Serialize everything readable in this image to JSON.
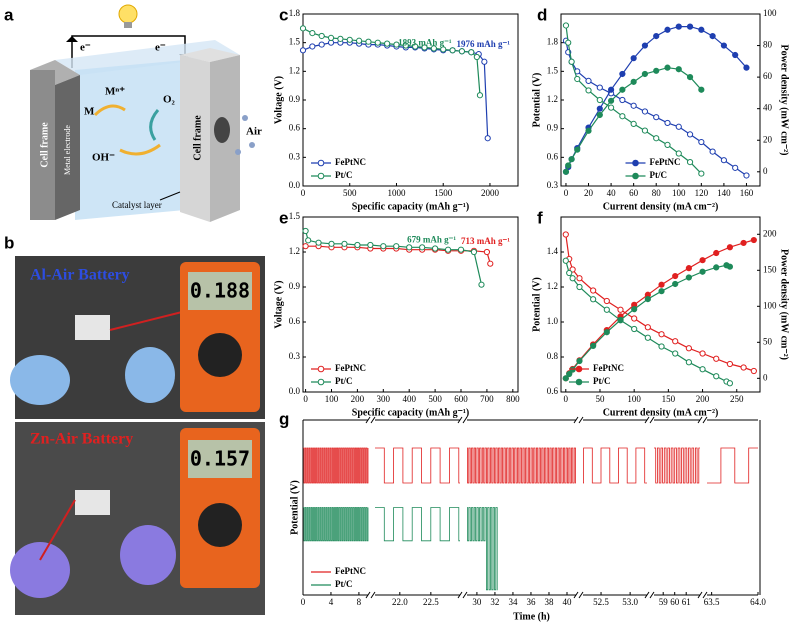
{
  "diagram": {
    "label": "a",
    "e_left": "e⁻",
    "e_right": "e⁻",
    "ion": "Mⁿ⁺",
    "metal": "M",
    "oxygen": "O₂",
    "hydroxide": "OH⁻",
    "air": "Air",
    "frame_left": "Cell frame",
    "electrode": "Metal electrode",
    "frame_right": "Cell frame",
    "catalyst": "Catalyst layer"
  },
  "photos": {
    "label": "b",
    "top_title": "Al-Air Battery",
    "top_reading": "0.188",
    "bottom_title": "Zn-Air Battery",
    "bottom_reading": "0.157"
  },
  "chart_data": [
    {
      "type": "line",
      "label": "c",
      "xlabel": "Specific capacity (mAh g⁻¹)",
      "ylabel": "Voltage (V)",
      "xlim": [
        0,
        2300
      ],
      "xticks": [
        0,
        500,
        1000,
        1500,
        2000
      ],
      "ylim": [
        0,
        1.8
      ],
      "yticks": [
        {
          "value": 0,
          "label": "0.0"
        },
        0.3,
        0.6,
        0.9,
        1.2,
        1.5,
        1.8
      ],
      "legend": "lower left",
      "series": [
        {
          "name": "FePtNC",
          "color": "#1f3fb0",
          "annotation": "1976 mAh g⁻¹",
          "x": [
            0,
            100,
            200,
            300,
            400,
            500,
            600,
            700,
            800,
            900,
            1000,
            1100,
            1200,
            1300,
            1400,
            1500,
            1600,
            1700,
            1800,
            1880,
            1940,
            1976
          ],
          "values": [
            1.42,
            1.46,
            1.48,
            1.5,
            1.5,
            1.5,
            1.49,
            1.48,
            1.48,
            1.47,
            1.46,
            1.45,
            1.45,
            1.44,
            1.43,
            1.42,
            1.42,
            1.41,
            1.4,
            1.38,
            1.3,
            0.5
          ]
        },
        {
          "name": "Pt/C",
          "color": "#1e8a5a",
          "annotation": "1893 mAh g⁻¹",
          "x": [
            0,
            100,
            200,
            300,
            400,
            500,
            600,
            700,
            800,
            900,
            1000,
            1100,
            1200,
            1300,
            1400,
            1500,
            1600,
            1700,
            1800,
            1860,
            1893
          ],
          "values": [
            1.65,
            1.6,
            1.57,
            1.55,
            1.54,
            1.53,
            1.52,
            1.51,
            1.5,
            1.49,
            1.48,
            1.47,
            1.46,
            1.45,
            1.44,
            1.43,
            1.42,
            1.41,
            1.4,
            1.35,
            0.95
          ]
        }
      ]
    },
    {
      "type": "polarization",
      "label": "d",
      "xlabel": "Current density (mA cm⁻²)",
      "ylabel": "Potential (V)",
      "y2label": "Power density (mW cm⁻²)",
      "xlim": [
        -4.4,
        172
      ],
      "xticks": [
        0,
        20,
        40,
        60,
        80,
        100,
        120,
        140,
        160
      ],
      "ylim": [
        0.3,
        2.1
      ],
      "yticks": [
        0.3,
        0.6,
        0.9,
        1.2,
        1.5,
        1.8
      ],
      "y2lim": [
        -9,
        100
      ],
      "y2ticks": [
        0,
        20,
        40,
        60,
        80,
        100
      ],
      "legend": "lower center",
      "series": [
        {
          "name": "FePtNC",
          "color": "#1f3fb0",
          "x": [
            0,
            2,
            5,
            10,
            20,
            30,
            40,
            50,
            60,
            70,
            80,
            90,
            100,
            110,
            120,
            130,
            140,
            150,
            160
          ],
          "values": [
            1.82,
            1.7,
            1.6,
            1.5,
            1.4,
            1.33,
            1.27,
            1.2,
            1.14,
            1.08,
            1.02,
            0.96,
            0.92,
            0.84,
            0.76,
            0.66,
            0.57,
            0.49,
            0.41
          ],
          "power": [
            0,
            3,
            8,
            15,
            28,
            40,
            52,
            62,
            72,
            80,
            86,
            90,
            92,
            92,
            90,
            86,
            80,
            74,
            66
          ]
        },
        {
          "name": "Pt/C",
          "color": "#1e8a5a",
          "x": [
            0,
            2,
            5,
            10,
            20,
            30,
            40,
            50,
            60,
            70,
            80,
            90,
            100,
            110,
            120
          ],
          "values": [
            1.98,
            1.8,
            1.6,
            1.42,
            1.3,
            1.2,
            1.12,
            1.03,
            0.95,
            0.88,
            0.8,
            0.73,
            0.64,
            0.55,
            0.43
          ],
          "power": [
            0,
            4,
            8,
            14,
            26,
            36,
            45,
            52,
            57,
            62,
            64,
            66,
            65,
            60,
            52
          ]
        }
      ]
    },
    {
      "type": "line",
      "label": "e",
      "xlabel": "Specific capacity (mAh g⁻¹)",
      "ylabel": "Voltage (V)",
      "xlim": [
        -10,
        820
      ],
      "xticks": [
        0,
        100,
        200,
        300,
        400,
        500,
        600,
        700,
        800
      ],
      "ylim": [
        0,
        1.5
      ],
      "yticks": [
        {
          "value": 0,
          "label": "0.0"
        },
        0.3,
        0.6,
        0.9,
        1.2,
        1.5
      ],
      "legend": "lower left",
      "series": [
        {
          "name": "FePtNC",
          "color": "#e02020",
          "annotation": "713 mAh g⁻¹",
          "x": [
            0,
            50,
            100,
            150,
            200,
            250,
            300,
            350,
            400,
            450,
            500,
            550,
            600,
            650,
            700,
            713
          ],
          "values": [
            1.25,
            1.25,
            1.24,
            1.24,
            1.24,
            1.23,
            1.23,
            1.23,
            1.22,
            1.22,
            1.22,
            1.21,
            1.21,
            1.21,
            1.2,
            1.1
          ]
        },
        {
          "name": "Pt/C",
          "color": "#1e8a5a",
          "annotation": "679 mAh g⁻¹",
          "x": [
            0,
            10,
            50,
            100,
            150,
            200,
            250,
            300,
            350,
            400,
            450,
            500,
            550,
            600,
            650,
            679
          ],
          "values": [
            1.38,
            1.3,
            1.28,
            1.27,
            1.27,
            1.26,
            1.26,
            1.25,
            1.25,
            1.24,
            1.24,
            1.23,
            1.22,
            1.22,
            1.2,
            0.92
          ]
        }
      ]
    },
    {
      "type": "polarization",
      "label": "f",
      "xlabel": "Current density (mA cm⁻²)",
      "ylabel": "Potential (V)",
      "y2label": "Power density (mW cm⁻²)",
      "xlim": [
        -7,
        284
      ],
      "xticks": [
        0,
        50,
        100,
        150,
        200,
        250
      ],
      "ylim": [
        0.6,
        1.6
      ],
      "yticks": [
        0.6,
        0.8,
        {
          "value": 1,
          "label": "1.0"
        },
        1.2,
        1.4
      ],
      "y2lim": [
        -19,
        224
      ],
      "y2ticks": [
        0,
        50,
        100,
        150,
        200
      ],
      "legend": "lower left",
      "series": [
        {
          "name": "FePtNC",
          "color": "#e02020",
          "x": [
            0,
            5,
            10,
            20,
            40,
            60,
            80,
            100,
            120,
            140,
            160,
            180,
            200,
            220,
            240,
            260,
            275
          ],
          "values": [
            1.5,
            1.36,
            1.3,
            1.25,
            1.18,
            1.12,
            1.07,
            1.02,
            0.97,
            0.93,
            0.89,
            0.85,
            0.82,
            0.79,
            0.76,
            0.74,
            0.72
          ],
          "power": [
            0,
            7,
            13,
            25,
            47,
            67,
            86,
            102,
            116,
            130,
            142,
            153,
            164,
            174,
            182,
            188,
            192
          ]
        },
        {
          "name": "Pt/C",
          "color": "#1e8a5a",
          "x": [
            0,
            5,
            10,
            20,
            40,
            60,
            80,
            100,
            120,
            140,
            160,
            180,
            200,
            220,
            235,
            240
          ],
          "values": [
            1.35,
            1.28,
            1.25,
            1.2,
            1.13,
            1.07,
            1.01,
            0.96,
            0.91,
            0.86,
            0.82,
            0.77,
            0.73,
            0.69,
            0.66,
            0.65
          ],
          "power": [
            0,
            6,
            12,
            24,
            45,
            64,
            81,
            96,
            110,
            121,
            131,
            140,
            148,
            154,
            157,
            155
          ]
        }
      ]
    },
    {
      "type": "cycling",
      "label": "g",
      "xlabel": "Time (h)",
      "ylabel": "Potential (V)",
      "ylim": [
        0,
        10
      ],
      "legend": "lower left",
      "segments": [
        {
          "xlim": [
            0,
            9.3
          ],
          "xticks": [
            0,
            4,
            8
          ]
        },
        {
          "xlim": [
            21.6,
            22.97
          ],
          "xticks": [
            {
              "value": 22,
              "label": "22.0"
            },
            22.5
          ]
        },
        {
          "xlim": [
            28.9,
            41
          ],
          "xticks": [
            30,
            32,
            34,
            36,
            38,
            40
          ]
        },
        {
          "xlim": [
            52.19,
            53.29
          ],
          "xticks": [
            52.5,
            {
              "value": 53,
              "label": "53.0"
            }
          ]
        },
        {
          "xlim": [
            58.2,
            62.2
          ],
          "xticks": [
            59,
            60,
            61
          ]
        },
        {
          "xlim": [
            63.45,
            64
          ],
          "xticks": [
            63.5,
            {
              "value": 64,
              "label": "64.0"
            }
          ]
        }
      ],
      "series": [
        {
          "name": "FePtNC",
          "color": "#e02020",
          "charge": 8.4,
          "discharge": 6.4,
          "period": 0.3,
          "end": 64
        },
        {
          "name": "Pt/C",
          "color": "#1e8a5a",
          "charge": 5,
          "discharge": 3.1,
          "period": 0.3,
          "end": 32.3,
          "failure_onset": 31,
          "failure_discharge": 0.3
        }
      ]
    }
  ]
}
